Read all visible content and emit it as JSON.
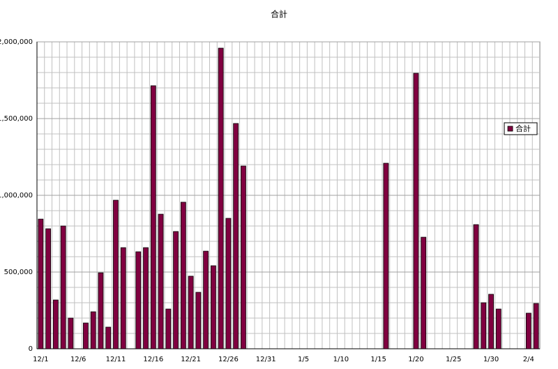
{
  "chart_data": {
    "type": "bar",
    "title": "合計",
    "categories": [
      "12/1",
      null,
      null,
      null,
      null,
      "12/6",
      null,
      null,
      null,
      null,
      "12/11",
      null,
      null,
      null,
      null,
      "12/16",
      null,
      null,
      null,
      null,
      "12/21",
      null,
      null,
      null,
      null,
      "12/26",
      null,
      null,
      null,
      null,
      "12/31",
      null,
      null,
      null,
      null,
      "1/5",
      null,
      null,
      null,
      null,
      "1/10",
      null,
      null,
      null,
      null,
      "1/15",
      null,
      null,
      null,
      null,
      "1/20",
      null,
      null,
      null,
      null,
      "1/25",
      null,
      null,
      null,
      null,
      "1/30",
      null,
      null,
      null,
      null,
      "2/4",
      null
    ],
    "series": [
      {
        "name": "合計",
        "color": "#800040",
        "values": [
          845000,
          782000,
          318000,
          800000,
          200000,
          null,
          168000,
          241000,
          495000,
          141000,
          968000,
          659000,
          null,
          632000,
          659000,
          1714000,
          877000,
          259000,
          764000,
          955000,
          473000,
          368000,
          636000,
          541000,
          1959000,
          850000,
          1468000,
          1191000,
          null,
          null,
          null,
          null,
          null,
          null,
          null,
          null,
          null,
          null,
          null,
          null,
          null,
          null,
          null,
          null,
          null,
          null,
          1209000,
          null,
          null,
          null,
          1795000,
          727000,
          null,
          null,
          null,
          null,
          null,
          null,
          809000,
          300000,
          355000,
          259000,
          null,
          null,
          null,
          232000,
          295000
        ]
      }
    ],
    "ylim": [
      0,
      2000000
    ],
    "yticks": [
      0,
      {
        "value": 500000,
        "label": "500,000"
      },
      {
        "value": 1000000,
        "label": "1,000,000"
      },
      {
        "value": 1500000,
        "label": "1,500,000"
      },
      {
        "value": 2000000,
        "label": "2,000,000"
      }
    ],
    "minor_yticks": [
      100000,
      200000,
      300000,
      400000,
      600000,
      700000,
      800000,
      900000,
      1100000,
      1200000,
      1300000,
      1400000,
      1600000,
      1700000,
      1800000,
      1900000
    ],
    "grid": true,
    "legend": "right"
  }
}
